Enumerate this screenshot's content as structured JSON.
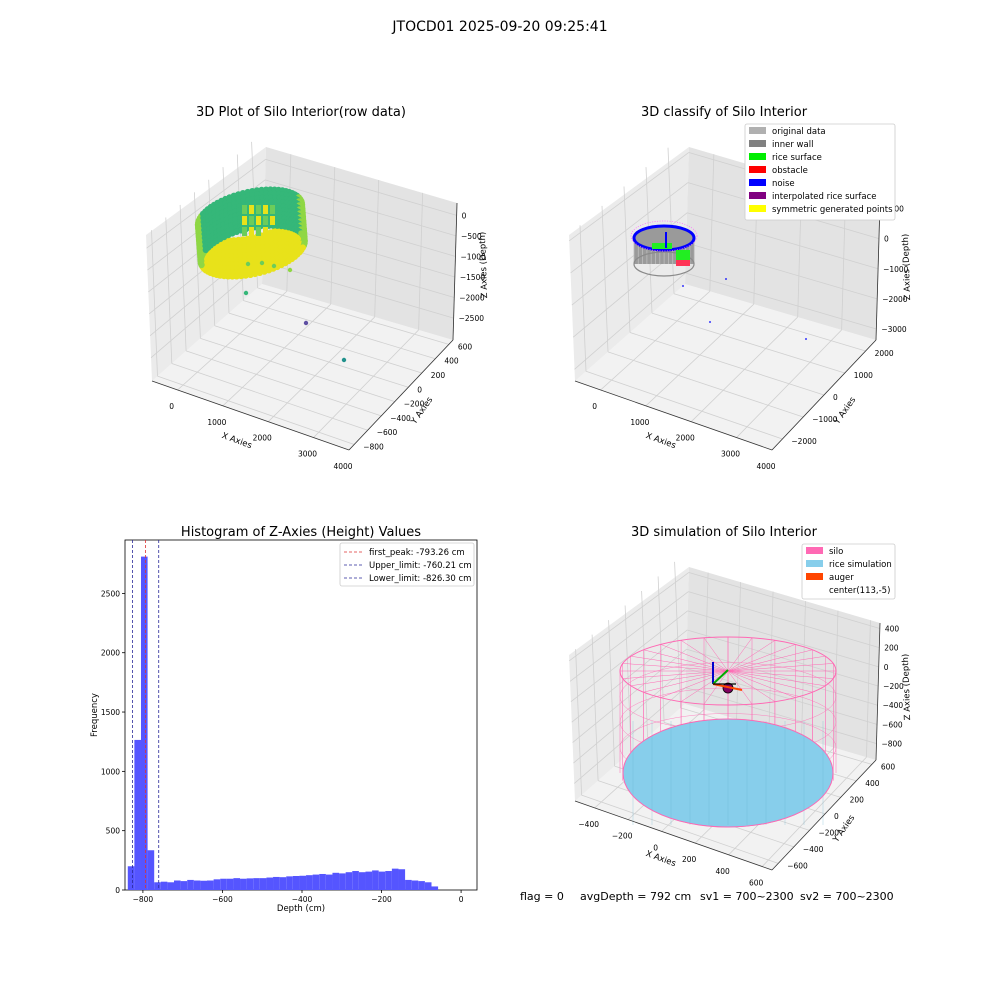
{
  "suptitle": "JTOCD01 2025-09-20 09:25:41",
  "footer": {
    "flag": "flag = 0",
    "avg_depth": "avgDepth = 792 cm",
    "sv1": "sv1 = 700~2300",
    "sv2": "sv2 = 700~2300"
  },
  "colors": {
    "hist": "#5555ff",
    "first_peak": "#dd3333",
    "limits": "#2a2a99",
    "silo": "#ff69b4",
    "rice_sim": "#87ceeb",
    "auger": "#ff4500",
    "inner_wall": "#888888",
    "rice_surface": "#22ee22",
    "noise": "#0000ff",
    "interp": "#800080",
    "sym": "#ffff00"
  },
  "chart_data": [
    {
      "type": "scatter",
      "subtype": "3d",
      "title": "3D Plot of Silo Interior(row data)",
      "xlabel": "X Axies",
      "ylabel": "Y Axies",
      "zlabel": "Z Axies (Depth)",
      "x_ticks": [
        "0",
        "1000",
        "2000",
        "3000",
        "4000"
      ],
      "y_ticks": [
        "−800",
        "−600",
        "−400",
        "−200",
        "0",
        "200",
        "400",
        "600"
      ],
      "z_ticks": [
        "−2500",
        "−2000",
        "−1500",
        "−1000",
        "−500",
        "0"
      ],
      "colormap": "viridis"
    },
    {
      "type": "scatter",
      "subtype": "3d",
      "title": "3D classify of Silo Interior",
      "xlabel": "X Axies",
      "ylabel": "Y Axies",
      "zlabel": "Z Axies (Depth)",
      "x_ticks": [
        "0",
        "1000",
        "2000",
        "3000",
        "4000"
      ],
      "y_ticks": [
        "−2000",
        "−1000",
        "0",
        "1000",
        "2000"
      ],
      "z_ticks": [
        "−3000",
        "−2000",
        "−1000",
        "0",
        "1000"
      ],
      "legend_position": "top-right",
      "legend": [
        {
          "label": "original data",
          "color": "#b0b0b0"
        },
        {
          "label": "inner wall",
          "color": "#808080"
        },
        {
          "label": "rice surface",
          "color": "#00ee00"
        },
        {
          "label": "obstacle",
          "color": "#ff0000"
        },
        {
          "label": "noise",
          "color": "#0000ff"
        },
        {
          "label": "interpolated rice surface",
          "color": "#800080"
        },
        {
          "label": "symmetric generated points",
          "color": "#ffff00"
        }
      ]
    },
    {
      "type": "bar",
      "subtype": "histogram",
      "title": "Histogram of Z-Axies (Height) Values",
      "xlabel": "Depth (cm)",
      "ylabel": "Frequency",
      "xlim": [
        -845,
        40
      ],
      "ylim": [
        0,
        2950
      ],
      "x_ticks": [
        {
          "v": -800,
          "t": "−800"
        },
        {
          "v": -600,
          "t": "−600"
        },
        {
          "v": -400,
          "t": "−400"
        },
        {
          "v": -200,
          "t": "−200"
        },
        {
          "v": 0,
          "t": "0"
        }
      ],
      "y_ticks": [
        {
          "v": 0,
          "t": "0"
        },
        {
          "v": 500,
          "t": "500"
        },
        {
          "v": 1000,
          "t": "1000"
        },
        {
          "v": 1500,
          "t": "1500"
        },
        {
          "v": 2000,
          "t": "2000"
        },
        {
          "v": 2500,
          "t": "2500"
        }
      ],
      "bin_start": -838,
      "bin_width": 16.6,
      "values": [
        200,
        1265,
        2810,
        335,
        65,
        70,
        65,
        80,
        75,
        85,
        80,
        78,
        80,
        90,
        95,
        95,
        100,
        95,
        98,
        100,
        100,
        105,
        110,
        108,
        115,
        118,
        120,
        125,
        130,
        135,
        130,
        145,
        140,
        150,
        160,
        150,
        155,
        165,
        155,
        160,
        180,
        175,
        85,
        80,
        75,
        65,
        30
      ],
      "vlines": [
        {
          "x": -793.26,
          "label": "first_peak: -793.26 cm",
          "color": "#dd3333"
        },
        {
          "x": -760.21,
          "label": "Upper_limit: -760.21 cm",
          "color": "#2a2a99"
        },
        {
          "x": -826.3,
          "label": "Lower_limit: -826.30 cm",
          "color": "#2a2a99"
        }
      ],
      "legend_position": "top-right"
    },
    {
      "type": "scatter",
      "subtype": "3d-surface",
      "title": "3D simulation of Silo Interior",
      "xlabel": "X Axies",
      "ylabel": "Y Axies",
      "zlabel": "Z Axies (Depth)",
      "x_ticks": [
        "−400",
        "−200",
        "0",
        "200",
        "400",
        "600"
      ],
      "y_ticks": [
        "−600",
        "−400",
        "−200",
        "0",
        "200",
        "400",
        "600"
      ],
      "z_ticks": [
        "−800",
        "−600",
        "−400",
        "−200",
        "0",
        "200",
        "400"
      ],
      "legend_position": "top-right",
      "legend": [
        {
          "label": "silo",
          "color": "#ff69b4"
        },
        {
          "label": "rice simulation",
          "color": "#87ceeb"
        },
        {
          "label": "auger",
          "color": "#ff4500"
        },
        {
          "label": "center(113,-5)",
          "color": "none"
        }
      ]
    }
  ]
}
